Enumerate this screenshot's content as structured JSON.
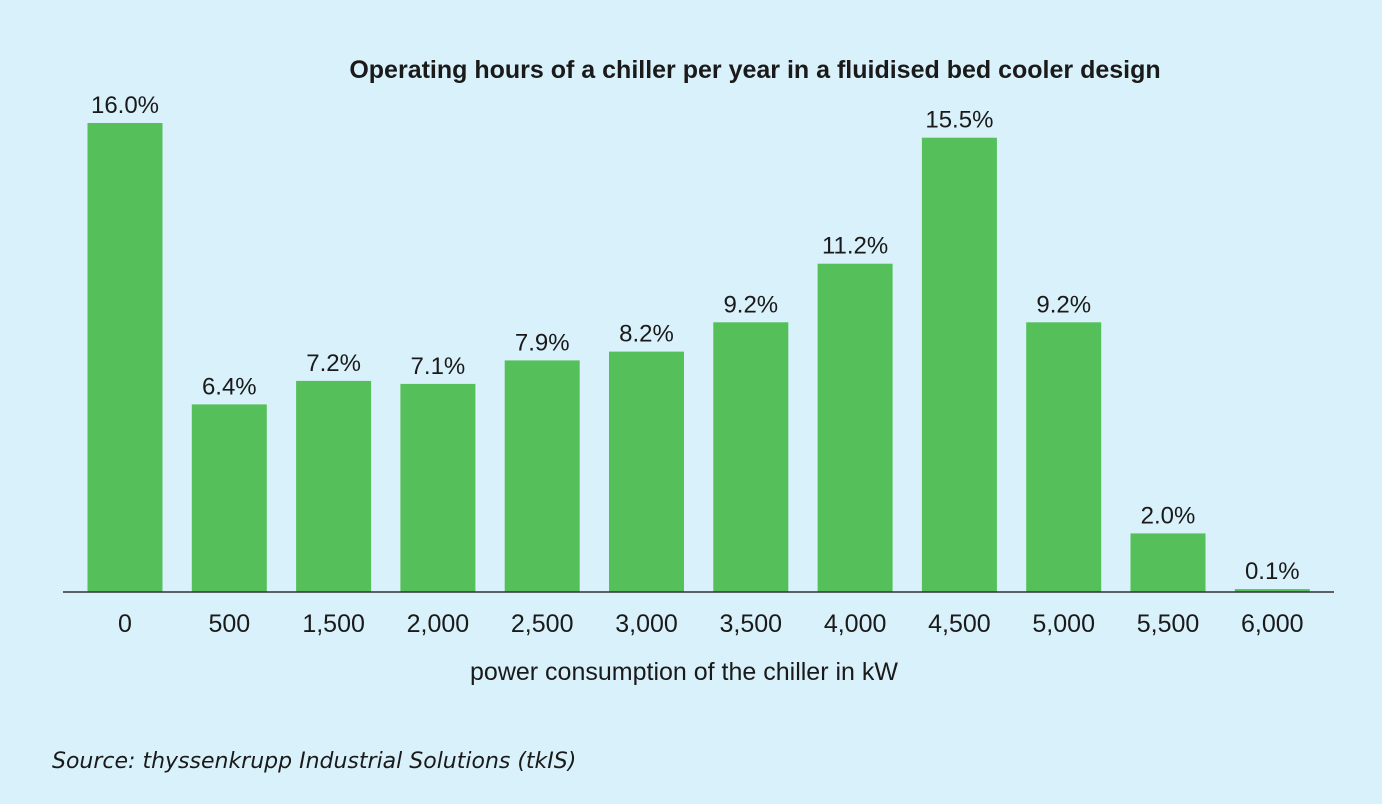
{
  "chart_data": {
    "type": "bar",
    "title": "Operating hours of a chiller per year in a fluidised bed cooler design",
    "xlabel": "power consumption of the chiller in kW",
    "ylabel": "",
    "categories": [
      "0",
      "500",
      "1,500",
      "2,000",
      "2,500",
      "3,000",
      "3,500",
      "4,000",
      "4,500",
      "5,000",
      "5,500",
      "6,000"
    ],
    "values": [
      16.0,
      6.4,
      7.2,
      7.1,
      7.9,
      8.2,
      9.2,
      11.2,
      15.5,
      9.2,
      2.0,
      0.1
    ],
    "value_labels": [
      "16.0%",
      "6.4%",
      "7.2%",
      "7.1%",
      "7.9%",
      "8.2%",
      "9.2%",
      "11.2%",
      "15.5%",
      "9.2%",
      "2.0%",
      "0.1%"
    ],
    "ylim": [
      0,
      16.0
    ],
    "grid": false,
    "legend": "none",
    "bar_color": "#55c05a",
    "background_color": "#d9f1fa"
  },
  "source": "Source: thyssenkrupp Industrial Solutions (tkIS)"
}
